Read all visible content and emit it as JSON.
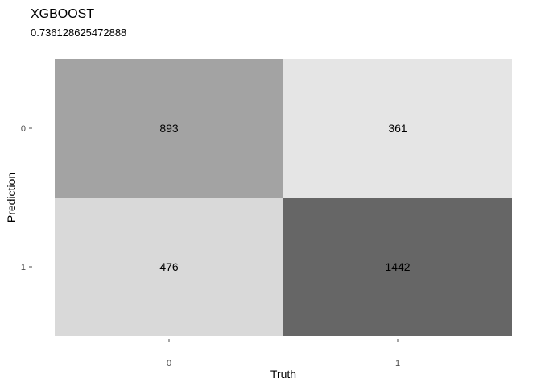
{
  "chart_data": {
    "type": "heatmap",
    "title": "XGBOOST",
    "subtitle": "0.736128625472888",
    "xlabel": "Truth",
    "ylabel": "Prediction",
    "x_categories": [
      "0",
      "1"
    ],
    "y_categories": [
      "0",
      "1"
    ],
    "cells": [
      {
        "truth": "0",
        "prediction": "0",
        "value": 893,
        "color": "#a3a3a3"
      },
      {
        "truth": "1",
        "prediction": "0",
        "value": 361,
        "color": "#e5e5e5"
      },
      {
        "truth": "0",
        "prediction": "1",
        "value": 476,
        "color": "#d9d9d9"
      },
      {
        "truth": "1",
        "prediction": "1",
        "value": 1442,
        "color": "#666666"
      }
    ],
    "grid": false,
    "legend": "none"
  }
}
